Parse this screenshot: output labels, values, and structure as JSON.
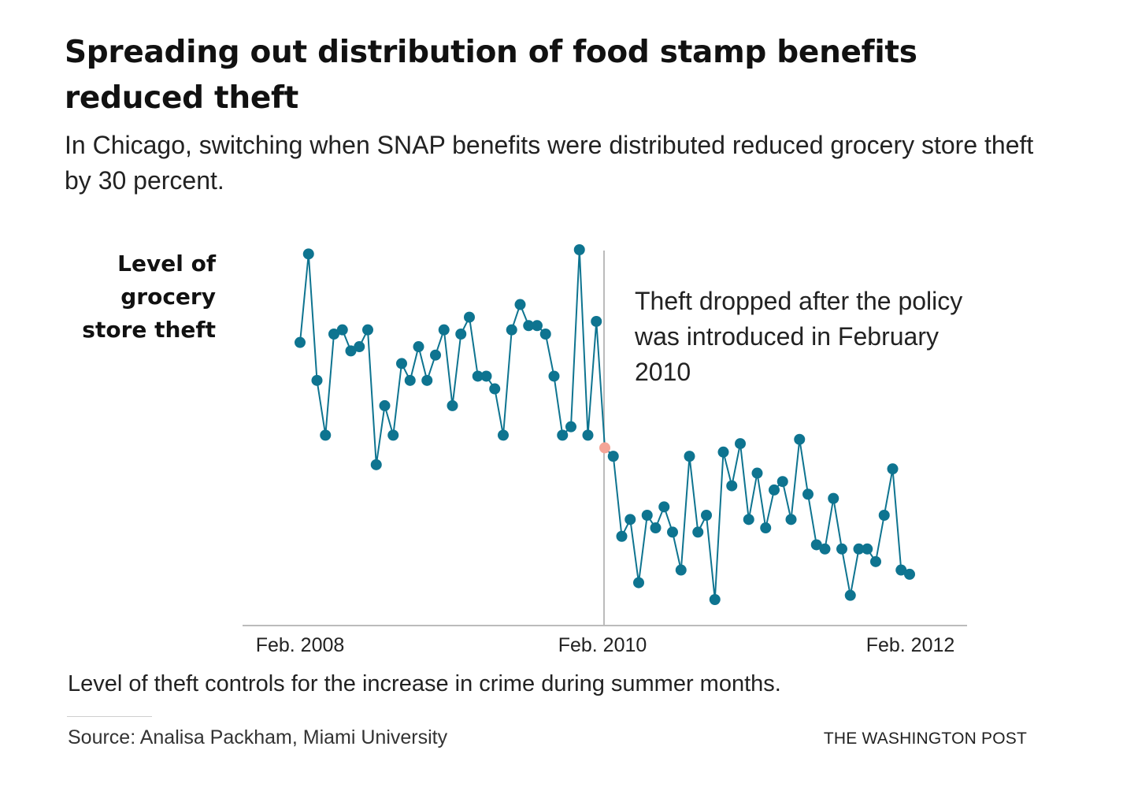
{
  "header": {
    "title": "Spreading out distribution of food stamp benefits reduced theft",
    "subtitle": "In Chicago, switching when SNAP benefits were distributed reduced grocery store theft by 30 percent."
  },
  "footer": {
    "note": "Level of theft controls for the increase in crime during summer months.",
    "source": "Source: Analisa Packham, Miami University",
    "credit": "THE WASHINGTON POST"
  },
  "chart_data": {
    "type": "line",
    "title": "Spreading out distribution of food stamp benefits reduced theft",
    "ylabel": "Level of grocery store theft",
    "xlabel": "",
    "x_tick_labels": [
      "Feb. 2008",
      "Feb. 2010",
      "Feb. 2012"
    ],
    "y_axis_values_shown": false,
    "policy_marker": {
      "label": "Feb. 2010",
      "annotation": "Theft dropped after the policy was introduced in February 2010"
    },
    "colors": {
      "line": "#0e7490",
      "highlight": "#f4a497",
      "axis": "#bbbbbb"
    },
    "series": [
      {
        "values": [
          79,
          100,
          70,
          57,
          81,
          82,
          77,
          78,
          82,
          50,
          64,
          57,
          74,
          70,
          78,
          70,
          76,
          82,
          64,
          81,
          85,
          71,
          71,
          68,
          57,
          82,
          88,
          83,
          83,
          81,
          71,
          57,
          59,
          101,
          57,
          84,
          54,
          52,
          33,
          37,
          22,
          38,
          35,
          40,
          34,
          25,
          52,
          34,
          38,
          18,
          53,
          45,
          55,
          37,
          48,
          35,
          44,
          46,
          37,
          56,
          43,
          31,
          30,
          42,
          30,
          19,
          30,
          30,
          27,
          38,
          49,
          25,
          24
        ]
      }
    ]
  }
}
